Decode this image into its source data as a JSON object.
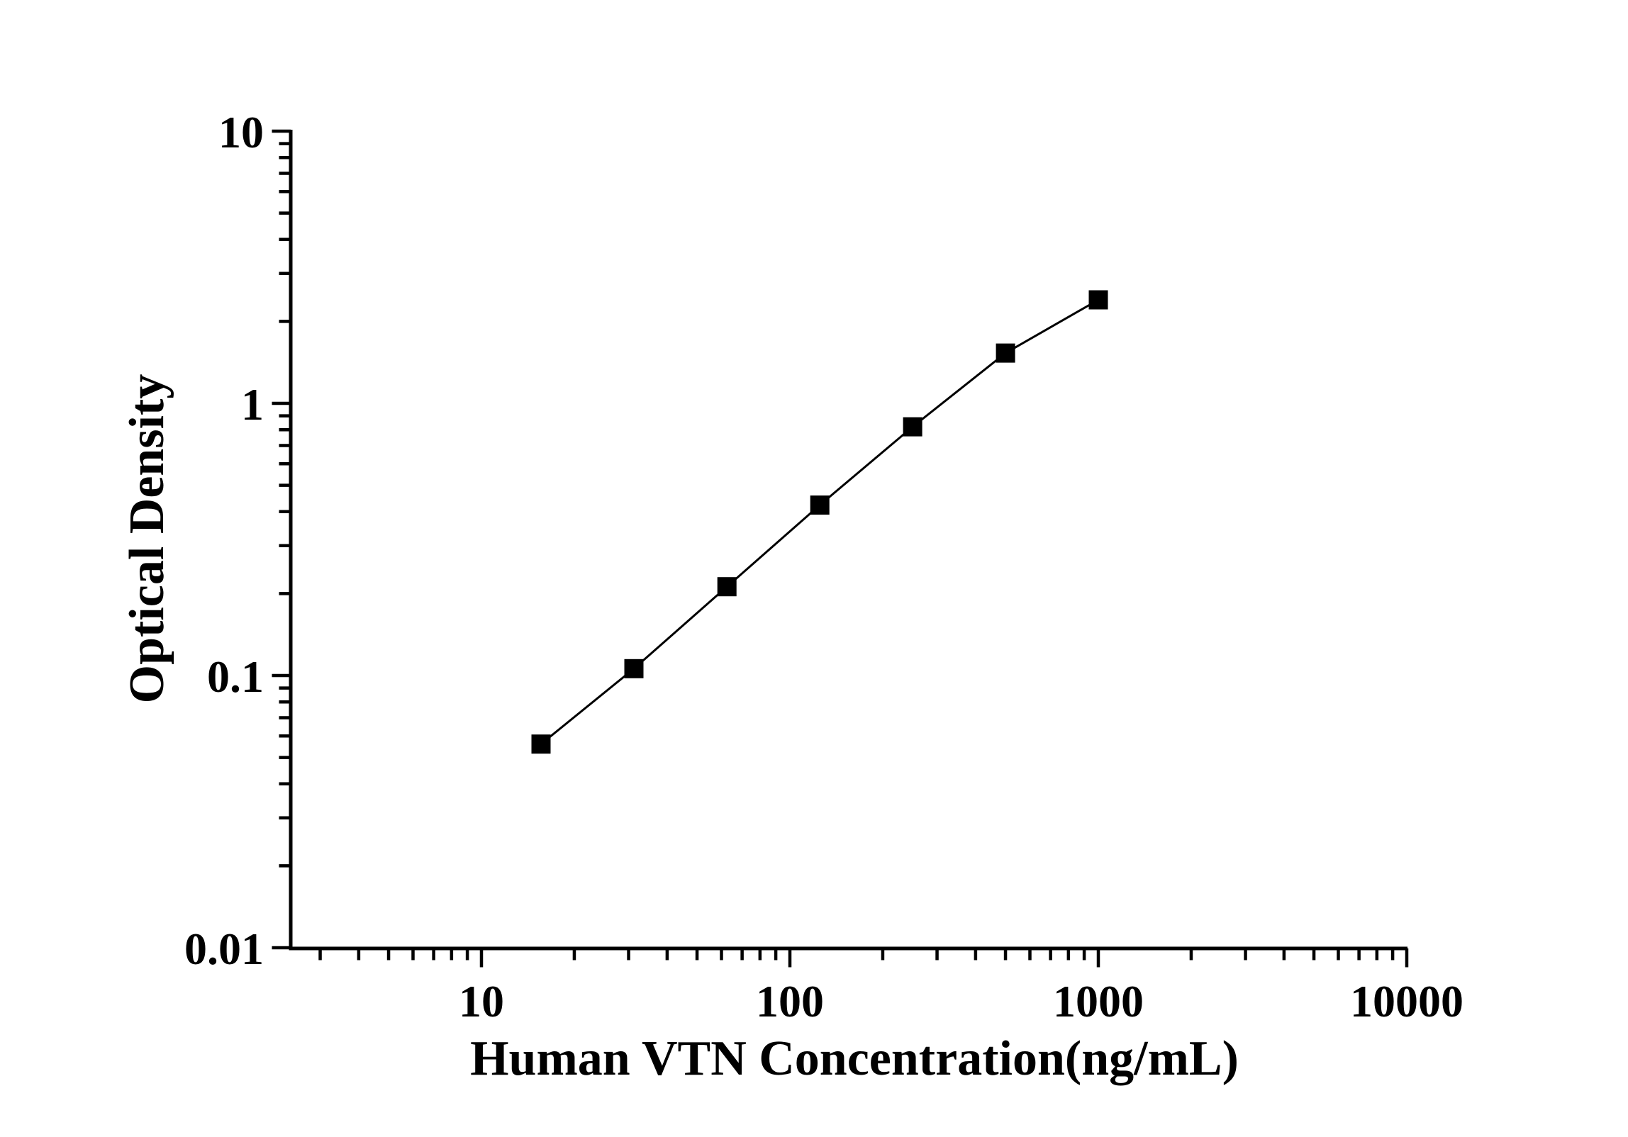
{
  "figure": {
    "background_color": "#ffffff",
    "ink_color": "#000000",
    "title": ""
  },
  "chart_data": {
    "type": "line",
    "title": "",
    "xlabel": "Human VTN Concentration(ng/mL)",
    "ylabel": "Optical Density",
    "x_scale": "log",
    "y_scale": "log",
    "xlim": [
      2.4,
      10000
    ],
    "ylim": [
      0.01,
      10
    ],
    "x_ticks": [
      10,
      100,
      1000,
      10000
    ],
    "x_tick_labels": [
      "10",
      "100",
      "1000",
      "10000"
    ],
    "y_ticks": [
      0.01,
      0.1,
      1,
      10
    ],
    "y_tick_labels": [
      "0.01",
      "0.1",
      "1",
      "10"
    ],
    "grid": false,
    "legend": "none",
    "series": [
      {
        "name": "standard-curve",
        "marker": "filled-square",
        "line_style": "solid",
        "color": "#000000",
        "x": [
          15.6,
          31.2,
          62.5,
          125,
          250,
          500,
          1000
        ],
        "y": [
          0.056,
          0.106,
          0.212,
          0.423,
          0.82,
          1.53,
          2.4
        ]
      }
    ]
  }
}
